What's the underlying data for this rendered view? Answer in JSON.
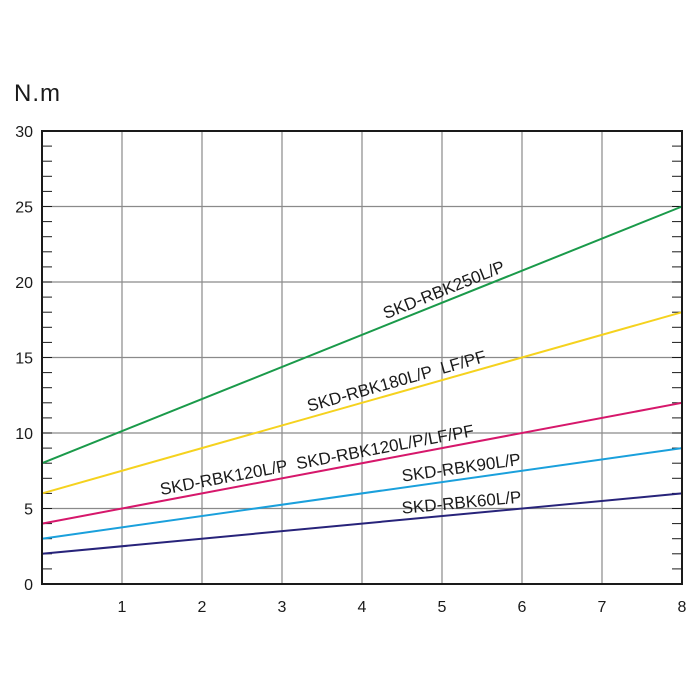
{
  "chart_data": {
    "type": "line",
    "ylabel": "N.m",
    "xlabel": "",
    "xlim": [
      0,
      8
    ],
    "ylim": [
      0,
      30
    ],
    "x_ticks": [
      "1",
      "2",
      "3",
      "4",
      "5",
      "6",
      "7",
      "8"
    ],
    "y_ticks": [
      "0",
      "5",
      "10",
      "15",
      "20",
      "25",
      "30"
    ],
    "grid": true,
    "series": [
      {
        "name": "SKD-RBK250L/P",
        "color": "#1a9a4a",
        "x": [
          0,
          8
        ],
        "y": [
          8,
          25
        ]
      },
      {
        "name": "SKD-RBK180L/P  LF/PF",
        "color": "#f5d21e",
        "x": [
          0,
          8
        ],
        "y": [
          6,
          18
        ]
      },
      {
        "name": "SKD-RBK120L/P  SKD-RBK120L/P/LF/PF",
        "color": "#d6176b",
        "x": [
          0,
          8
        ],
        "y": [
          4,
          12
        ]
      },
      {
        "name": "SKD-RBK90L/P",
        "color": "#1aa0dc",
        "x": [
          0,
          8
        ],
        "y": [
          3,
          9
        ]
      },
      {
        "name": "SKD-RBK60L/P",
        "color": "#27237a",
        "x": [
          0,
          8
        ],
        "y": [
          2,
          6
        ]
      }
    ]
  }
}
